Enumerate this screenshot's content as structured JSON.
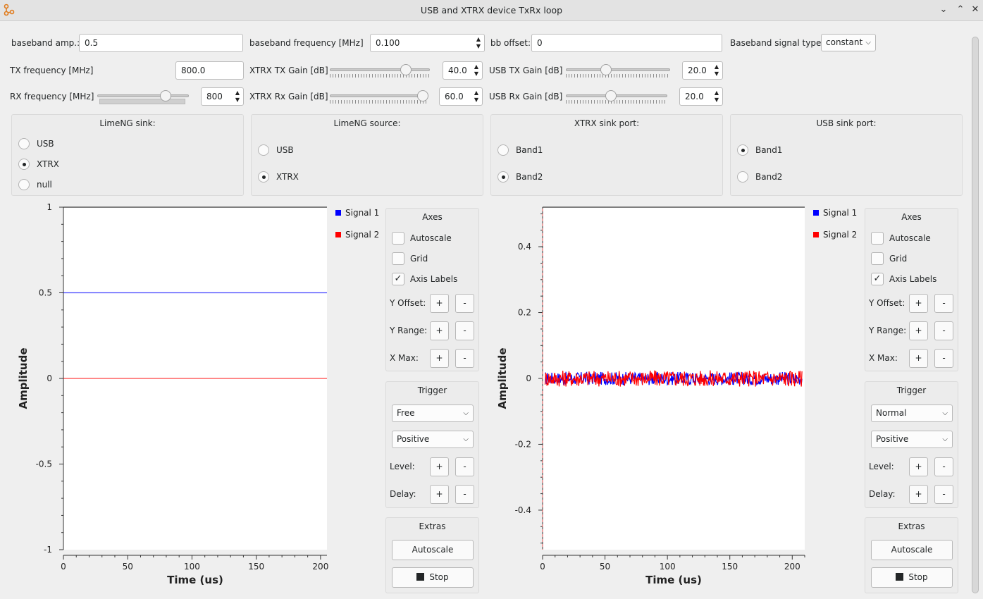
{
  "window": {
    "title": "USB and XTRX device TxRx loop"
  },
  "params": {
    "baseband_amp": {
      "label": "baseband amp.:",
      "value": "0.5"
    },
    "baseband_freq": {
      "label": "baseband frequency [MHz]",
      "value": "0.100"
    },
    "bb_offset": {
      "label": "bb offset:",
      "value": "0"
    },
    "signal_type": {
      "label": "Baseband signal type:",
      "value": "constant"
    },
    "tx_freq": {
      "label": "TX frequency [MHz]",
      "value": "800.0"
    },
    "xtrx_tx_gain": {
      "label": "XTRX TX Gain [dB]",
      "value": "40.0",
      "level": 0.73
    },
    "usb_tx_gain": {
      "label": "USB TX Gain [dB]",
      "value": "20.0",
      "level": 0.35
    },
    "rx_freq": {
      "label": "RX frequency [MHz]",
      "value": "800",
      "level": 0.75
    },
    "xtrx_rx_gain": {
      "label": "XTRX Rx Gain [dB]",
      "value": "60.0",
      "level": 1.0
    },
    "usb_rx_gain": {
      "label": "USB Rx Gain [dB]",
      "value": "20.0",
      "level": 0.45
    }
  },
  "groups": {
    "lime_sink": {
      "title": "LimeNG sink:",
      "options": [
        "USB",
        "XTRX",
        "null"
      ],
      "selected": "XTRX"
    },
    "lime_source": {
      "title": "LimeNG source:",
      "options": [
        "USB",
        "XTRX"
      ],
      "selected": "XTRX"
    },
    "xtrx_sink_port": {
      "title": "XTRX sink port:",
      "options": [
        "Band1",
        "Band2"
      ],
      "selected": "Band2"
    },
    "usb_sink_port": {
      "title": "USB sink port:",
      "options": [
        "Band1",
        "Band2"
      ],
      "selected": "Band1"
    }
  },
  "panel_labels": {
    "axes": "Axes",
    "autoscale": "Autoscale",
    "grid": "Grid",
    "axis_labels": "Axis Labels",
    "y_offset": "Y Offset:",
    "y_range": "Y Range:",
    "x_max": "X Max:",
    "trigger": "Trigger",
    "level": "Level:",
    "delay": "Delay:",
    "extras": "Extras",
    "autoscale_btn": "Autoscale",
    "stop_btn": "Stop",
    "plus": "+",
    "minus": "-"
  },
  "plot_left": {
    "trigger_mode": "Free",
    "trigger_slope": "Positive",
    "axes_checks": {
      "autoscale": false,
      "grid": false,
      "axis_labels": true
    }
  },
  "plot_right": {
    "trigger_mode": "Normal",
    "trigger_slope": "Positive",
    "axes_checks": {
      "autoscale": false,
      "grid": false,
      "axis_labels": true
    }
  },
  "chart_data": [
    {
      "type": "line",
      "xlabel": "Time (us)",
      "ylabel": "Amplitude",
      "xlim": [
        0,
        205
      ],
      "ylim": [
        -1,
        1
      ],
      "xticks": [
        "0",
        "50",
        "100",
        "150",
        "200"
      ],
      "yticks": [
        "1",
        "0.5",
        "0",
        "-0.5",
        "-1"
      ],
      "grid": false,
      "legend": "right",
      "series": [
        {
          "name": "Signal 1",
          "color": "#0000ff",
          "x": [
            0,
            205
          ],
          "y": [
            0.5,
            0.5
          ]
        },
        {
          "name": "Signal 2",
          "color": "#ff0000",
          "x": [
            0,
            205
          ],
          "y": [
            0,
            0
          ]
        }
      ]
    },
    {
      "type": "line",
      "xlabel": "Time (us)",
      "ylabel": "Amplitude",
      "xlim": [
        0,
        210
      ],
      "ylim": [
        -0.52,
        0.52
      ],
      "xticks": [
        "0",
        "50",
        "100",
        "150",
        "200"
      ],
      "yticks": [
        "0.4",
        "0.2",
        "0",
        "-0.2",
        "-0.4"
      ],
      "grid": false,
      "legend": "right",
      "trigger_line_x": 0,
      "series": [
        {
          "name": "Signal 1",
          "color": "#0000ff",
          "noise_amplitude": 0.02,
          "center": 0
        },
        {
          "name": "Signal 2",
          "color": "#ff0000",
          "noise_amplitude": 0.025,
          "center": 0
        }
      ]
    }
  ]
}
